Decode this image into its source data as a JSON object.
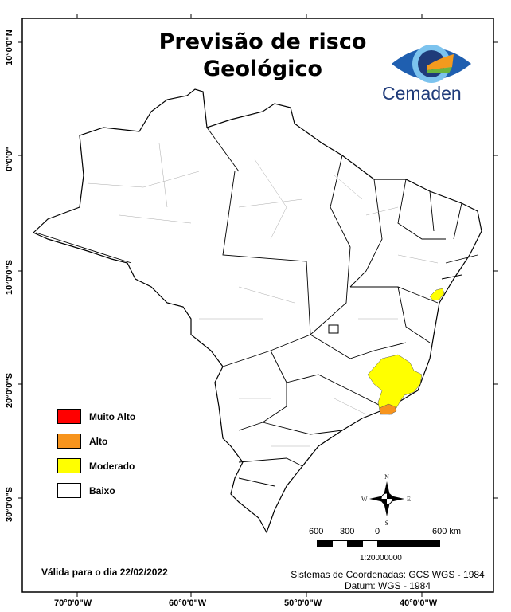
{
  "title_line1": "Previsão de risco",
  "title_line2": "Geológico",
  "logo": {
    "text": "Cemaden",
    "colors": [
      "#1f3b7a",
      "#2a8fd6",
      "#f39a1e",
      "#6ab43e"
    ]
  },
  "axes": {
    "x_labels": [
      "70°0'0\"W",
      "60°0'0\"W",
      "50°0'0\"W",
      "40°0'0\"W"
    ],
    "y_labels": [
      "10°0'0\"N",
      "0°0'0\"",
      "10°0'0\"S",
      "20°0'0\"S",
      "30°0'0\"S"
    ]
  },
  "legend": {
    "items": [
      {
        "label": "Muito Alto",
        "color": "#ff0000"
      },
      {
        "label": "Alto",
        "color": "#f7941d"
      },
      {
        "label": "Moderado",
        "color": "#ffff00"
      },
      {
        "label": "Baixo",
        "color": "#ffffff"
      }
    ]
  },
  "compass": {
    "n": "N",
    "s": "S",
    "e": "E",
    "w": "W"
  },
  "scale": {
    "labels": [
      "600",
      "300",
      "0",
      "600 km"
    ],
    "ratio": "1:20000000"
  },
  "validity": "Válida para o dia 22/02/2022",
  "coord_system": "Sistemas de Coordenadas: GCS WGS - 1984",
  "datum": "Datum: WGS - 1984"
}
